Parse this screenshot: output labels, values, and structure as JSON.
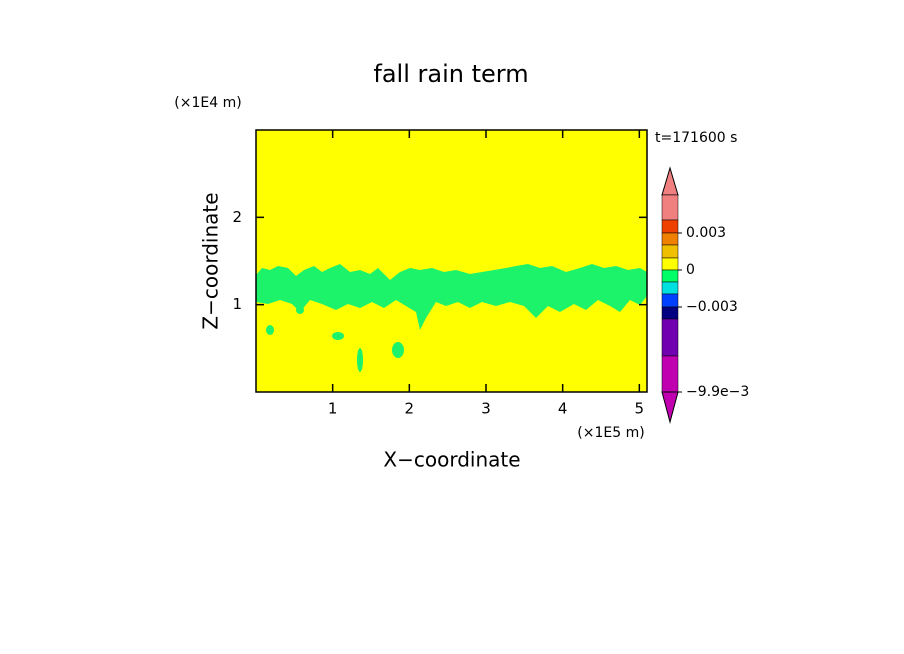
{
  "chart_data": {
    "type": "contour",
    "title": "fall rain term",
    "x_label": "X−coordinate",
    "y_label": "Z−coordinate",
    "x_unit": "(×1E5 m)",
    "y_unit": "(×1E4 m)",
    "time_label": "t=171600 s",
    "xlim": [
      0,
      5.1
    ],
    "xticks": [
      1,
      2,
      3,
      4,
      5
    ],
    "ylim": [
      0,
      3
    ],
    "yticks": [
      1,
      2
    ],
    "background_color": "#ffff00",
    "field_color": "#1cf26a",
    "colorbar": {
      "colors": [
        "#f08080",
        "#f08080",
        "#f04000",
        "#f08000",
        "#f0c000",
        "#ffff00",
        "#00ff66",
        "#00e0e0",
        "#0040ff",
        "#000080",
        "#7000b0",
        "#c000b0",
        "#c000b0"
      ],
      "ticks": [
        {
          "value": 0.003,
          "label": "0.003"
        },
        0,
        {
          "value": -0.003,
          "label": "−0.003"
        },
        {
          "value": -0.0099,
          "label": "−9.9e−3"
        }
      ]
    }
  }
}
